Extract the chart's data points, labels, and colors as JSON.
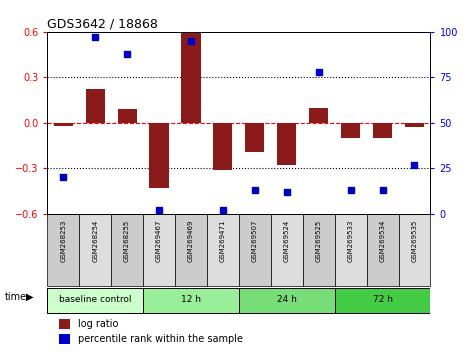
{
  "title": "GDS3642 / 18868",
  "samples": [
    "GSM268253",
    "GSM268254",
    "GSM268255",
    "GSM269467",
    "GSM269469",
    "GSM269471",
    "GSM269507",
    "GSM269524",
    "GSM269525",
    "GSM269533",
    "GSM269534",
    "GSM269535"
  ],
  "log_ratio": [
    -0.02,
    0.22,
    0.09,
    -0.43,
    0.6,
    -0.31,
    -0.19,
    -0.28,
    0.1,
    -0.1,
    -0.1,
    -0.03
  ],
  "percentile": [
    20,
    97,
    88,
    2,
    95,
    2,
    13,
    12,
    78,
    13,
    13,
    27
  ],
  "groups": [
    {
      "label": "baseline control",
      "start": 0,
      "end": 3,
      "color": "#ccffcc"
    },
    {
      "label": "12 h",
      "start": 3,
      "end": 6,
      "color": "#99ee99"
    },
    {
      "label": "24 h",
      "start": 6,
      "end": 9,
      "color": "#77dd77"
    },
    {
      "label": "72 h",
      "start": 9,
      "end": 12,
      "color": "#44cc44"
    }
  ],
  "bar_color": "#8B1A1A",
  "dot_color": "#0000CC",
  "ylim_left": [
    -0.6,
    0.6
  ],
  "ylim_right": [
    0,
    100
  ],
  "yticks_left": [
    -0.6,
    -0.3,
    0.0,
    0.3,
    0.6
  ],
  "yticks_right": [
    0,
    25,
    50,
    75,
    100
  ],
  "hline_dotted": [
    -0.3,
    0.3
  ],
  "hline_dashed": 0.0,
  "box_colors": [
    "#cccccc",
    "#dddddd"
  ],
  "legend_bar_label": "log ratio",
  "legend_dot_label": "percentile rank within the sample",
  "time_label": "time",
  "fig_width": 4.73,
  "fig_height": 3.54,
  "dpi": 100
}
